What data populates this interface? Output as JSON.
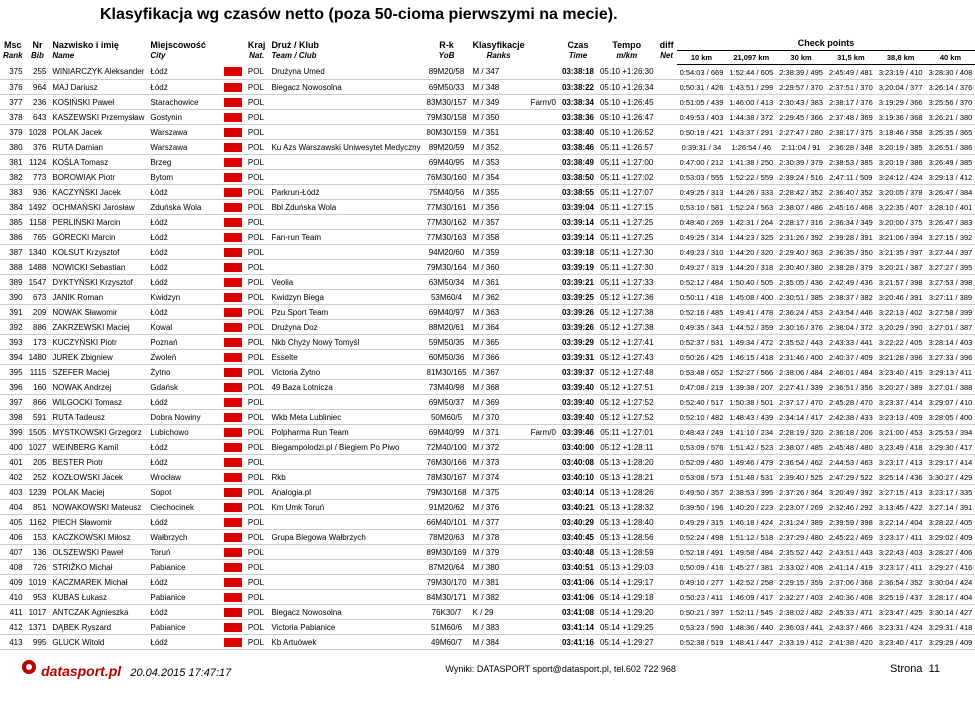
{
  "title": "Klasyfikacja wg czasów netto (poza 50-cioma pierwszymi na mecie).",
  "head": {
    "msc": "Msc",
    "rank": "Rank",
    "nr": "Nr",
    "bib": "Bib",
    "nazwisko": "Nazwisko i imię",
    "name": "Name",
    "miejsc": "Miejscowość",
    "city": "City",
    "kraj": "Kraj",
    "nat": "Nat.",
    "druz": "Druż / Klub",
    "team": "Team / Club",
    "rk": "R-k",
    "yob": "YoB",
    "klas": "Klasyfikacje",
    "ranks": "Ranks",
    "czas": "Czas",
    "time": "Time",
    "tempo": "Tempo",
    "mkm": "m/km",
    "diff": "diff",
    "net": "Net",
    "check": "Check points",
    "cp": [
      "10 km",
      "21,097 km",
      "30 km",
      "31,5 km",
      "38,8 km",
      "40 km"
    ]
  },
  "rows": [
    {
      "msc": "375",
      "bib": "255",
      "name": "WINIARCZYK Aleksander",
      "city": "Łódź",
      "nat": "POL",
      "team": "Drużyna Umed",
      "yob": "89M20/58",
      "rk": "M / 347",
      "gap": "",
      "time": "03:38:18",
      "tempo": "05:10 +1:26:30",
      "cp": [
        "0:54:03 / 669",
        "1:52:44 / 605",
        "2:38:39 / 495",
        "2:45:49 / 481",
        "3:23:19 / 410",
        "3:28:30 / 408"
      ]
    },
    {
      "msc": "376",
      "bib": "964",
      "name": "MAJ Dariusz",
      "city": "Łódź",
      "nat": "POL",
      "team": "Biegacz Nowosolna",
      "yob": "69M50/33",
      "rk": "M / 348",
      "gap": "",
      "time": "03:38:22",
      "tempo": "05:10 +1:26:34",
      "cp": [
        "0:50:31 / 426",
        "1:43:51 / 299",
        "2:29:57 / 370",
        "2:37:51 / 370",
        "3:20:04 / 377",
        "3:26:14 / 376"
      ]
    },
    {
      "msc": "377",
      "bib": "236",
      "name": "KOSIŃSKI Paweł",
      "city": "Starachowice",
      "nat": "POL",
      "team": "",
      "yob": "83M30/157",
      "rk": "M / 349",
      "gap": "Farm/0",
      "time": "03:38:34",
      "tempo": "05:10 +1:26:45",
      "cp": [
        "0:51:05 / 439",
        "1:46:00 / 413",
        "2:30:43 / 383",
        "2:38:17 / 376",
        "3:19:29 / 366",
        "3:25:56 / 370"
      ]
    },
    {
      "msc": "378",
      "bib": "643",
      "name": "KASZEWSKI Przemysław",
      "city": "Gostynin",
      "nat": "POL",
      "team": "",
      "yob": "79M30/158",
      "rk": "M / 350",
      "gap": "",
      "time": "03:38:36",
      "tempo": "05:10 +1:26:47",
      "cp": [
        "0:49:53 / 403",
        "1:44:38 / 372",
        "2:29:45 / 366",
        "2:37:48 / 369",
        "3:19:36 / 368",
        "3:26:21 / 380"
      ]
    },
    {
      "msc": "379",
      "bib": "1028",
      "name": "POLAK Jacek",
      "city": "Warszawa",
      "nat": "POL",
      "team": "",
      "yob": "80M30/159",
      "rk": "M / 351",
      "gap": "",
      "time": "03:38:40",
      "tempo": "05:10 +1:26:52",
      "cp": [
        "0:50:19 / 421",
        "1:43:37 / 291",
        "2:27:47 / 280",
        "2:38:17 / 375",
        "3:18:46 / 358",
        "3:25:35 / 365"
      ]
    },
    {
      "msc": "380",
      "bib": "376",
      "name": "RUTA Damian",
      "city": "Warszawa",
      "nat": "POL",
      "team": "Ku Azs Warszawski Uniwesytet Medyczny",
      "yob": "89M20/59",
      "rk": "M / 352",
      "gap": "",
      "time": "03:38:46",
      "tempo": "05:11 +1:26:57",
      "cp": [
        "0:39:31 / 34",
        "1:26:54 / 46",
        "2:11:04 / 91",
        "2:36:28 / 348",
        "3:20:19 / 385",
        "3:26:51 / 386"
      ]
    },
    {
      "msc": "381",
      "bib": "1124",
      "name": "KOŚLA Tomasz",
      "city": "Brzeg",
      "nat": "POL",
      "team": "",
      "yob": "69M40/95",
      "rk": "M / 353",
      "gap": "",
      "time": "03:38:49",
      "tempo": "05:11 +1:27:00",
      "cp": [
        "0:47:00 / 212",
        "1:41:38 / 250",
        "2:30:39 / 379",
        "2:38:53 / 385",
        "3:20:19 / 386",
        "3:26:49 / 385"
      ]
    },
    {
      "msc": "382",
      "bib": "773",
      "name": "BOROWIAK Piotr",
      "city": "Bytom",
      "nat": "POL",
      "team": "",
      "yob": "76M30/160",
      "rk": "M / 354",
      "gap": "",
      "time": "03:38:50",
      "tempo": "05:11 +1:27:02",
      "cp": [
        "0:53:03 / 555",
        "1:52:22 / 559",
        "2:39:24 / 516",
        "2:47:11 / 509",
        "3:24:12 / 424",
        "3:29:13 / 412"
      ]
    },
    {
      "msc": "383",
      "bib": "936",
      "name": "KACZYŃSKI Jacek",
      "city": "Łódź",
      "nat": "POL",
      "team": "Parkrun-Łódź",
      "yob": "75M40/56",
      "rk": "M / 355",
      "gap": "",
      "time": "03:38:55",
      "tempo": "05:11 +1:27:07",
      "cp": [
        "0:49:25 / 313",
        "1:44:26 / 333",
        "2:28:42 / 352",
        "2:36:40 / 352",
        "3:20:05 / 378",
        "3:26:47 / 384"
      ]
    },
    {
      "msc": "384",
      "bib": "1492",
      "name": "OCHMAŃSKI Jarosław",
      "city": "Zduńska Wola",
      "nat": "POL",
      "team": "Bbl Zduńska Wola",
      "yob": "77M30/161",
      "rk": "M / 356",
      "gap": "",
      "time": "03:39:04",
      "tempo": "05:11 +1:27:15",
      "cp": [
        "0:53:10 / 581",
        "1:52:24 / 563",
        "2:38:07 / 486",
        "2:45:16 / 468",
        "3:22:35 / 407",
        "3:28:10 / 401"
      ]
    },
    {
      "msc": "385",
      "bib": "1158",
      "name": "PERLIŃSKI Marcin",
      "city": "Łódź",
      "nat": "POL",
      "team": "",
      "yob": "77M30/162",
      "rk": "M / 357",
      "gap": "",
      "time": "03:39:14",
      "tempo": "05:11 +1:27:25",
      "cp": [
        "0:48:40 / 269",
        "1:42:31 / 264",
        "2:28:17 / 316",
        "2:36:34 / 349",
        "3:20:00 / 375",
        "3:26:47 / 383"
      ]
    },
    {
      "msc": "386",
      "bib": "765",
      "name": "GÓRECKI Marcin",
      "city": "Łódź",
      "nat": "POL",
      "team": "Fan-run Team",
      "yob": "77M30/163",
      "rk": "M / 358",
      "gap": "",
      "time": "03:39:14",
      "tempo": "05:11 +1:27:25",
      "cp": [
        "0:49:25 / 314",
        "1:44:23 / 325",
        "2:31:26 / 392",
        "2:39:28 / 391",
        "3:21:06 / 394",
        "3:27:15 / 392"
      ]
    },
    {
      "msc": "387",
      "bib": "1340",
      "name": "KOLSUT Krzysztof",
      "city": "Łódź",
      "nat": "POL",
      "team": "",
      "yob": "94M20/60",
      "rk": "M / 359",
      "gap": "",
      "time": "03:39:18",
      "tempo": "05:11 +1:27:30",
      "cp": [
        "0:49:23 / 310",
        "1:44:20 / 320",
        "2:29:40 / 363",
        "2:36:35 / 350",
        "3:21:35 / 397",
        "3:27:44 / 397"
      ]
    },
    {
      "msc": "388",
      "bib": "1488",
      "name": "NOWICKI Sebastian",
      "city": "Łódź",
      "nat": "POL",
      "team": "",
      "yob": "79M30/164",
      "rk": "M / 360",
      "gap": "",
      "time": "03:39:19",
      "tempo": "05:11 +1:27:30",
      "cp": [
        "0:49:27 / 319",
        "1:44:20 / 318",
        "2:30:40 / 380",
        "2:38:28 / 379",
        "3:20:21 / 387",
        "3:27:27 / 395"
      ]
    },
    {
      "msc": "389",
      "bib": "1547",
      "name": "DYKTYŃSKI Krzysztof",
      "city": "Łódź",
      "nat": "POL",
      "team": "Veolia",
      "yob": "63M50/34",
      "rk": "M / 361",
      "gap": "",
      "time": "03:39:21",
      "tempo": "05:11 +1:27:33",
      "cp": [
        "0:52:12 / 484",
        "1:50:40 / 505",
        "2:35:05 / 436",
        "2:42:49 / 436",
        "3:21:57 / 398",
        "3:27:53 / 398"
      ]
    },
    {
      "msc": "390",
      "bib": "673",
      "name": "JANIK Roman",
      "city": "Kwidzyn",
      "nat": "POL",
      "team": "Kwidzyn Biega",
      "yob": "53M60/4",
      "rk": "M / 362",
      "gap": "",
      "time": "03:39:25",
      "tempo": "05:12 +1:27:36",
      "cp": [
        "0:50:11 / 418",
        "1:45:08 / 400",
        "2:30:51 / 385",
        "2:38:37 / 382",
        "3:20:46 / 391",
        "3:27:11 / 389"
      ]
    },
    {
      "msc": "391",
      "bib": "209",
      "name": "NOWAK Sławomir",
      "city": "Łódź",
      "nat": "POL",
      "team": "Pzu Sport Team",
      "yob": "69M40/97",
      "rk": "M / 363",
      "gap": "",
      "time": "03:39:26",
      "tempo": "05:12 +1:27:38",
      "cp": [
        "0:52:16 / 485",
        "1:49:41 / 478",
        "2:36:24 / 453",
        "2:43:54 / 446",
        "3:22:13 / 402",
        "3:27:58 / 399"
      ]
    },
    {
      "msc": "392",
      "bib": "886",
      "name": "ZAKRZEWSKI Maciej",
      "city": "Kowal",
      "nat": "POL",
      "team": "Drużyna Doz",
      "yob": "88M20/61",
      "rk": "M / 364",
      "gap": "",
      "time": "03:39:26",
      "tempo": "05:12 +1:27:38",
      "cp": [
        "0:49:35 / 343",
        "1:44:52 / 359",
        "2:30:16 / 376",
        "2:38:04 / 372",
        "3:20:29 / 390",
        "3:27:01 / 387"
      ]
    },
    {
      "msc": "393",
      "bib": "173",
      "name": "KUCZYŃSKI Piotr",
      "city": "Poznań",
      "nat": "POL",
      "team": "Nkb Chyży Nowy Tomyśl",
      "yob": "59M50/35",
      "rk": "M / 365",
      "gap": "",
      "time": "03:39:29",
      "tempo": "05:12 +1:27:41",
      "cp": [
        "0:52:37 / 531",
        "1:49:34 / 472",
        "2:35:52 / 443",
        "2:43:33 / 441",
        "3:22:22 / 405",
        "3:28:14 / 403"
      ]
    },
    {
      "msc": "394",
      "bib": "1480",
      "name": "JUREK Zbigniew",
      "city": "Zwoleń",
      "nat": "POL",
      "team": "Esselte",
      "yob": "60M50/36",
      "rk": "M / 366",
      "gap": "",
      "time": "03:39:31",
      "tempo": "05:12 +1:27:43",
      "cp": [
        "0:50:26 / 425",
        "1:46:15 / 418",
        "2:31:46 / 400",
        "2:40:37 / 409",
        "3:21:28 / 396",
        "3:27:33 / 396"
      ]
    },
    {
      "msc": "395",
      "bib": "1115",
      "name": "SZEFER Maciej",
      "city": "Żytno",
      "nat": "POL",
      "team": "Victoria Żytno",
      "yob": "81M30/165",
      "rk": "M / 367",
      "gap": "",
      "time": "03:39:37",
      "tempo": "05:12 +1:27:48",
      "cp": [
        "0:53:48 / 652",
        "1:52:27 / 566",
        "2:38:06 / 484",
        "2:46:01 / 484",
        "3:23:40 / 415",
        "3:29:13 / 411"
      ]
    },
    {
      "msc": "396",
      "bib": "160",
      "name": "NOWAK Andrzej",
      "city": "Gdańsk",
      "nat": "POL",
      "team": "49 Baza Lotnicza",
      "yob": "73M40/98",
      "rk": "M / 368",
      "gap": "",
      "time": "03:39:40",
      "tempo": "05:12 +1:27:51",
      "cp": [
        "0:47:08 / 219",
        "1:39:38 / 207",
        "2:27:41 / 339",
        "2:36:51 / 356",
        "3:20:27 / 389",
        "3:27:01 / 388"
      ]
    },
    {
      "msc": "397",
      "bib": "866",
      "name": "WILGOCKI Tomasz",
      "city": "Łódź",
      "nat": "POL",
      "team": "",
      "yob": "69M50/37",
      "rk": "M / 369",
      "gap": "",
      "time": "03:39:40",
      "tempo": "05:12 +1:27:52",
      "cp": [
        "0:52:40 / 517",
        "1:50:38 / 501",
        "2:37:17 / 470",
        "2:45:28 / 470",
        "3:23:37 / 414",
        "3:29:07 / 410"
      ]
    },
    {
      "msc": "398",
      "bib": "591",
      "name": "RUTA Tadeusz",
      "city": "Dobra Nowiny",
      "nat": "POL",
      "team": "Wkb Meta Lubliniec",
      "yob": "50M60/5",
      "rk": "M / 370",
      "gap": "",
      "time": "03:39:40",
      "tempo": "05:12 +1:27:52",
      "cp": [
        "0:52:10 / 482",
        "1:48:43 / 439",
        "2:34:14 / 417",
        "2:42:38 / 433",
        "3:23:13 / 409",
        "3:28:05 / 400"
      ]
    },
    {
      "msc": "399",
      "bib": "1505",
      "name": "MYSTKOWSKI Grzegorz",
      "city": "Lubichowo",
      "nat": "POL",
      "team": "Polpharma Run Team",
      "yob": "69M40/99",
      "rk": "M / 371",
      "gap": "Farm/0",
      "time": "03:39:46",
      "tempo": "05:11 +1:27:01",
      "cp": [
        "0:48:43 / 249",
        "1:41:10 / 234",
        "2:28:19 / 320",
        "2:36:18 / 206",
        "3:21:00 / 453",
        "3:25:53 / 394"
      ]
    },
    {
      "msc": "400",
      "bib": "1027",
      "name": "WEINBERG Kamil",
      "city": "Łódź",
      "nat": "POL",
      "team": "Biegampolodzi.pl / Biegiem Po Piwo",
      "yob": "72M40/100",
      "rk": "M / 372",
      "gap": "",
      "time": "03:40:00",
      "tempo": "05:12 +1:28:11",
      "cp": [
        "0:53:09 / 576",
        "1:51:42 / 523",
        "2:38:07 / 485",
        "2:45:48 / 480",
        "3:23:49 / 418",
        "3:29:30 / 417"
      ]
    },
    {
      "msc": "401",
      "bib": "205",
      "name": "BESTER Piotr",
      "city": "Łódź",
      "nat": "POL",
      "team": "",
      "yob": "76M30/166",
      "rk": "M / 373",
      "gap": "",
      "time": "03:40:08",
      "tempo": "05:13 +1:28:20",
      "cp": [
        "0:52:09 / 480",
        "1:49:46 / 479",
        "2:36:54 / 462",
        "2:44:53 / 463",
        "3:23:17 / 413",
        "3:29:17 / 414"
      ]
    },
    {
      "msc": "402",
      "bib": "252",
      "name": "KOZŁOWSKI Jacek",
      "city": "Wrocław",
      "nat": "POL",
      "team": "Rkb",
      "yob": "78M30/167",
      "rk": "M / 374",
      "gap": "",
      "time": "03:40:10",
      "tempo": "05:13 +1:28:21",
      "cp": [
        "0:53:08 / 573",
        "1:51:48 / 531",
        "2:39:40 / 525",
        "2:47:29 / 522",
        "3:25:14 / 436",
        "3:30:27 / 429"
      ]
    },
    {
      "msc": "403",
      "bib": "1239",
      "name": "POLAK Maciej",
      "city": "Sopot",
      "nat": "POL",
      "team": "Analogia.pl",
      "yob": "79M30/168",
      "rk": "M / 375",
      "gap": "",
      "time": "03:40:14",
      "tempo": "05:13 +1:28:26",
      "cp": [
        "0:49:50 / 357",
        "2:38:53 / 395",
        "2:37:26 / 364",
        "3:20:49 / 392",
        "3:27:15 / 413",
        "3:23:17 / 335"
      ]
    },
    {
      "msc": "404",
      "bib": "851",
      "name": "NOWAKOWSKI Mateusz",
      "city": "Ciechocinek",
      "nat": "POL",
      "team": "Km Umk Toruń",
      "yob": "91M20/62",
      "rk": "M / 376",
      "gap": "",
      "time": "03:40:21",
      "tempo": "05:13 +1:28:32",
      "cp": [
        "0:39:50 / 196",
        "1:40:20 / 223",
        "2:23:07 / 269",
        "2:32:46 / 292",
        "3:13:45 / 422",
        "3:27:14 / 391"
      ]
    },
    {
      "msc": "405",
      "bib": "1162",
      "name": "PIECH Sławomir",
      "city": "Łódź",
      "nat": "POL",
      "team": "",
      "yob": "66M40/101",
      "rk": "M / 377",
      "gap": "",
      "time": "03:40:29",
      "tempo": "05:13 +1:28:40",
      "cp": [
        "0:49:29 / 315",
        "1:46:18 / 424",
        "2:31:24 / 389",
        "2:39:59 / 398",
        "3:22:14 / 404",
        "3:28:22 / 405"
      ]
    },
    {
      "msc": "406",
      "bib": "153",
      "name": "KACZKOWSKI Miłosz",
      "city": "Wałbrzych",
      "nat": "POL",
      "team": "Grupa Biegowa Wałbrzych",
      "yob": "78M20/63",
      "rk": "M / 378",
      "gap": "",
      "time": "03:40:45",
      "tempo": "05:13 +1:28:56",
      "cp": [
        "0:52:24 / 498",
        "1:51:12 / 518",
        "2:37:29 / 480",
        "2:45:22 / 469",
        "3:23:17 / 411",
        "3:29:02 / 409"
      ]
    },
    {
      "msc": "407",
      "bib": "136",
      "name": "OLSZEWSKI Paweł",
      "city": "Toruń",
      "nat": "POL",
      "team": "",
      "yob": "89M30/169",
      "rk": "M / 379",
      "gap": "",
      "time": "03:40:48",
      "tempo": "05:13 +1:28:59",
      "cp": [
        "0:52:18 / 491",
        "1:49:58 / 484",
        "2:35:52 / 442",
        "2:43:51 / 443",
        "3:22:43 / 403",
        "3:28:27 / 406"
      ]
    },
    {
      "msc": "408",
      "bib": "726",
      "name": "STRIŽKO Michał",
      "city": "Pabianice",
      "nat": "POL",
      "team": "",
      "yob": "87M20/64",
      "rk": "M / 380",
      "gap": "",
      "time": "03:40:51",
      "tempo": "05:13 +1:29:03",
      "cp": [
        "0:50:09 / 416",
        "1:45:27 / 381",
        "2:33:02 / 408",
        "2:41:14 / 419",
        "3:23:17 / 411",
        "3:29:27 / 416"
      ]
    },
    {
      "msc": "409",
      "bib": "1019",
      "name": "KACZMAREK Michał",
      "city": "Łódź",
      "nat": "POL",
      "team": "",
      "yob": "79M30/170",
      "rk": "M / 381",
      "gap": "",
      "time": "03:41:06",
      "tempo": "05:14 +1:29:17",
      "cp": [
        "0:49:10 / 277",
        "1:42:52 / 258",
        "2:29:15 / 359",
        "2:37:06 / 368",
        "2:36:54 / 352",
        "3:30:04 / 424"
      ]
    },
    {
      "msc": "410",
      "bib": "953",
      "name": "KUBAS Łukasz",
      "city": "Pabianice",
      "nat": "POL",
      "team": "",
      "yob": "84M30/171",
      "rk": "M / 382",
      "gap": "",
      "time": "03:41:06",
      "tempo": "05:14 +1:29:18",
      "cp": [
        "0:50:23 / 411",
        "1:46:09 / 417",
        "2:32:27 / 403",
        "2:40:36 / 408",
        "3:25:19 / 437",
        "3:28:17 / 404"
      ]
    },
    {
      "msc": "411",
      "bib": "1017",
      "name": "ANTCZAK Agnieszka",
      "city": "Łódź",
      "nat": "POL",
      "team": "Biegacz Nowosolna",
      "yob": "76K30/7",
      "rk": "K / 29",
      "gap": "",
      "time": "03:41:08",
      "tempo": "05:14 +1:29:20",
      "cp": [
        "0:50:21 / 397",
        "1:52:11 / 545",
        "2:38:02 / 482",
        "2:45:33 / 471",
        "3:23:47 / 425",
        "3:30:14 / 427"
      ]
    },
    {
      "msc": "412",
      "bib": "1371",
      "name": "DĄBEK Ryszard",
      "city": "Pabianice",
      "nat": "POL",
      "team": "Victoria Pabianice",
      "yob": "51M60/6",
      "rk": "M / 383",
      "gap": "",
      "time": "03:41:14",
      "tempo": "05:14 +1:29:25",
      "cp": [
        "0:53:23 / 590",
        "1:48:36 / 440",
        "2:36:03 / 441",
        "2:43:37 / 466",
        "3:23:31 / 424",
        "3:29:31 / 418"
      ]
    },
    {
      "msc": "413",
      "bib": "995",
      "name": "GLUCK Witold",
      "city": "Łódź",
      "nat": "POL",
      "team": "Kb Artuówek",
      "yob": "49M60/7",
      "rk": "M / 384",
      "gap": "",
      "time": "03:41:16",
      "tempo": "05:14 +1:29:27",
      "cp": [
        "0:52:38 / 519",
        "1:48:41 / 447",
        "2:33:19 / 412",
        "2:41:38 / 420",
        "3:23:40 / 417",
        "3:29:29 / 409"
      ]
    }
  ],
  "footer": {
    "date": "20.04.2015 17:47:17",
    "mid": "Wyniki: DATASPORT sport@datasport.pl, tel.602 722 968",
    "page": "Strona",
    "pagenum": "11",
    "brand": "datasport.pl"
  }
}
